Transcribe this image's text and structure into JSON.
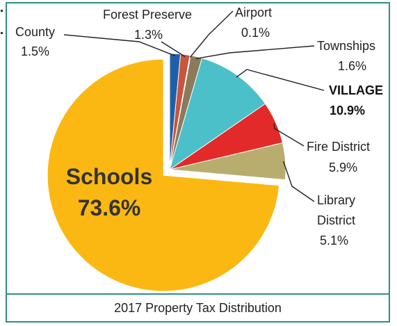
{
  "chart_data": {
    "type": "pie",
    "title": "2017 Property Tax Distribution",
    "slices": [
      {
        "name": "County",
        "value": 1.5,
        "value_label": "1.5%",
        "color": "#1f5fa8"
      },
      {
        "name": "Forest Preserve",
        "value": 1.3,
        "value_label": "1.3%",
        "color": "#c8553d"
      },
      {
        "name": "Airport",
        "value": 0.1,
        "value_label": "0.1%",
        "color": "#7a5a3a"
      },
      {
        "name": "Townships",
        "value": 1.6,
        "value_label": "1.6%",
        "color": "#8c7a5a"
      },
      {
        "name": "VILLAGE",
        "value": 10.9,
        "value_label": "10.9%",
        "color": "#4cc0c8",
        "emphasis": true
      },
      {
        "name": "Fire District",
        "value": 5.9,
        "value_label": "5.9%",
        "color": "#e22a2a"
      },
      {
        "name": "Library District",
        "value": 5.1,
        "value_label": "5.1%",
        "color": "#b8ad6e"
      },
      {
        "name": "Schools",
        "value": 73.6,
        "value_label": "73.6%",
        "color": "#fbb812",
        "exploded": true
      }
    ],
    "labels": {
      "county_name": "County",
      "county_value": "1.5%",
      "forest_name": "Forest Preserve",
      "forest_value": "1.3%",
      "airport_name": "Airport",
      "airport_value": "0.1%",
      "townships_name": "Townships",
      "townships_value": "1.6%",
      "village_name": "VILLAGE",
      "village_value": "10.9%",
      "fire_name": "Fire District",
      "fire_value": "5.9%",
      "library_name_1": "Library",
      "library_name_2": "District",
      "library_value": "5.1%",
      "schools_name": "Schools",
      "schools_value": "73.6%"
    }
  }
}
